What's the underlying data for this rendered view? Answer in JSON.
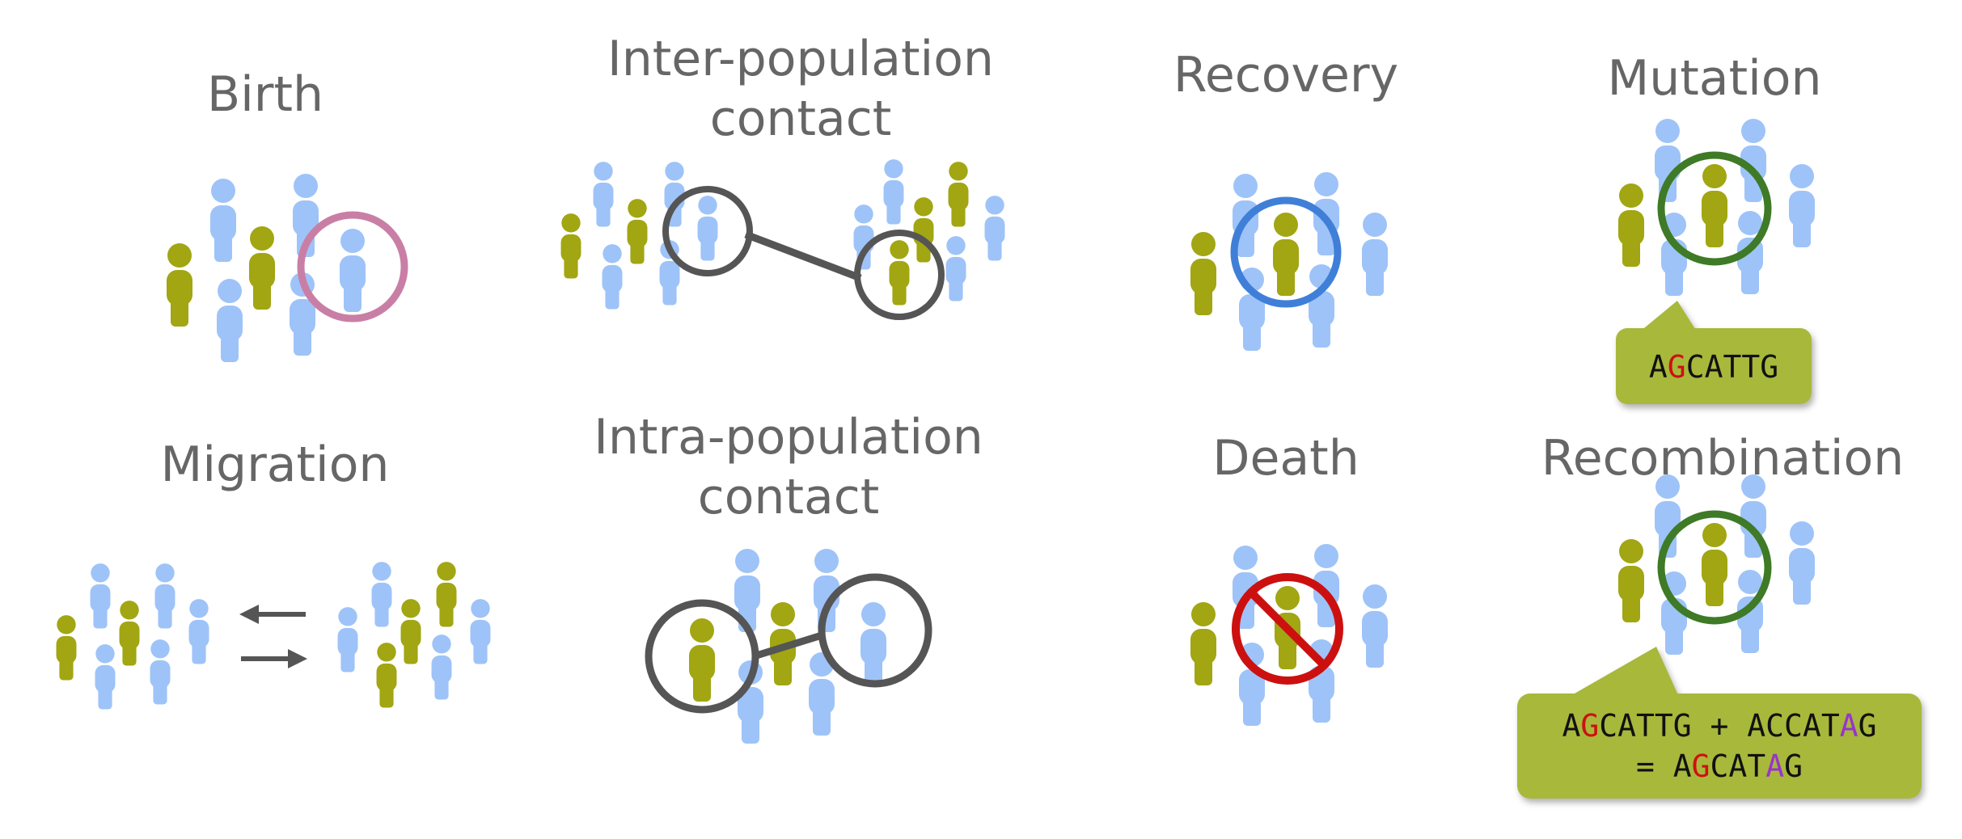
{
  "colors": {
    "background": "#ffffff",
    "title": "#666666",
    "person_blue": "#9ec3f8",
    "person_green": "#a1a612",
    "highlight_pink": "#c97fa5",
    "highlight_gray": "#555555",
    "highlight_blue": "#3f7fd8",
    "highlight_darkgreen": "#3f7a26",
    "highlight_red": "#cc1010",
    "callout": "#a8b83a",
    "base_red": "#cc1111",
    "base_purple": "#9933cc"
  },
  "panels": {
    "birth": {
      "title": "Birth",
      "highlight_icon": "circle-icon"
    },
    "inter": {
      "title_line1": "Inter-population",
      "title_line2": "contact",
      "link_icon": "connector-line-icon"
    },
    "recovery": {
      "title": "Recovery"
    },
    "mutation": {
      "title": "Mutation",
      "seq_pre": "A",
      "seq_mut": "G",
      "seq_post": "CATTG"
    },
    "migration": {
      "title": "Migration",
      "arrow_left_icon": "arrow-left-icon",
      "arrow_right_icon": "arrow-right-icon"
    },
    "intra": {
      "title_line1": "Intra-population",
      "title_line2": "contact"
    },
    "death": {
      "title": "Death",
      "symbol_icon": "prohibited-icon"
    },
    "recombination": {
      "title": "Recombination",
      "l1_a1": "A",
      "l1_a2": "G",
      "l1_a3": "CATTG + ACCAT",
      "l1_a4": "A",
      "l1_a5": "G",
      "l2_a1": "= A",
      "l2_a2": "G",
      "l2_a3": "CAT",
      "l2_a4": "A",
      "l2_a5": "G"
    }
  }
}
